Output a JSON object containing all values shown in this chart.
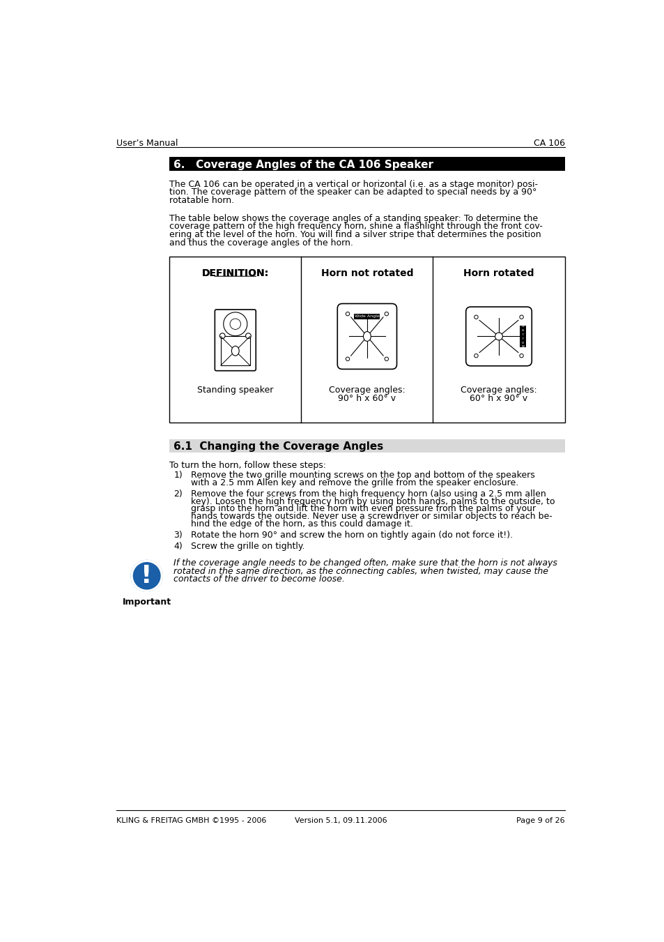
{
  "page_bg": "#ffffff",
  "header_left": "User’s Manual",
  "header_right": "CA 106",
  "footer_left": "KLING & FREITAG GMBH ©1995 - 2006",
  "footer_center": "Version 5.1, 09.11.2006",
  "footer_right": "Page 9 of 26",
  "section6_title": "6.   Coverage Angles of the CA 106 Speaker",
  "section6_bg": "#000000",
  "section6_color": "#ffffff",
  "para1": "The CA 106 can be operated in a vertical or horizontal (i.e. as a stage monitor) posi-\ntion. The coverage pattern of the speaker can be adapted to special needs by a 90°\nrotatable horn.",
  "para2": "The table below shows the coverage angles of a standing speaker: To determine the\ncoverage pattern of the high frequency horn, shine a flashlight through the front cov-\nering at the level of the horn. You will find a silver stripe that determines the position\nand thus the coverage angles of the horn.",
  "table_col1_header": "DEFINITION:",
  "table_col2_header": "Horn not rotated",
  "table_col3_header": "Horn rotated",
  "table_col1_label": "Standing speaker",
  "table_col2_label": "Coverage angles:\n90° h x 60° v",
  "table_col3_label": "Coverage angles:\n60° h x 90° v",
  "section61_title": "6.1  Changing the Coverage Angles",
  "section61_bg": "#d8d8d8",
  "intro_61": "To turn the horn, follow these steps:",
  "steps": [
    "Remove the two grille mounting screws on the top and bottom of the speakers\nwith a 2.5 mm Allen key and remove the grille from the speaker enclosure.",
    "Remove the four screws from the high frequency horn (also using a 2.5 mm allen\nkey). Loosen the high frequency horn by using both hands, palms to the outside, to\ngrasp into the horn and lift the horn with even pressure from the palms of your\nhands towards the outside. Never use a screwdriver or similar objects to reach be-\nhind the edge of the horn, as this could damage it.",
    "Rotate the horn 90° and screw the horn on tightly again (do not force it!).",
    "Screw the grille on tightly."
  ],
  "important_text": "If the coverage angle needs to be changed often, make sure that the horn is not always\nrotated in the same direction, as the connecting cables, when twisted, may cause the\ncontacts of the driver to become loose.",
  "important_label": "Important"
}
